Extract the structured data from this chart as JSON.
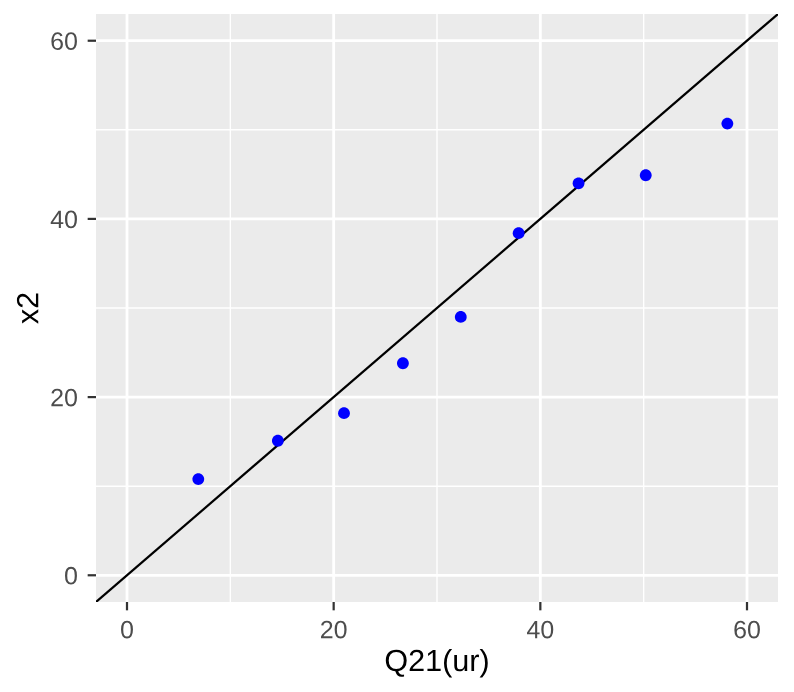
{
  "chart_data": {
    "type": "scatter",
    "xlabel": "Q21(ur)",
    "ylabel": "x2",
    "marker": "circle",
    "grid": true,
    "xlim": [
      -3,
      63
    ],
    "ylim": [
      -3,
      63
    ],
    "xticks": [
      0,
      {
        "value": 10,
        "label": null
      },
      20,
      {
        "value": 30,
        "label": null
      },
      40,
      {
        "value": 50,
        "label": null
      },
      60
    ],
    "yticks": [
      0,
      {
        "value": 10,
        "label": null
      },
      20,
      {
        "value": 30,
        "label": null
      },
      40,
      {
        "value": 50,
        "label": null
      },
      60
    ],
    "series": [
      {
        "color": "#0000ff",
        "x": [
          6.9,
          14.6,
          21.0,
          26.7,
          32.3,
          37.9,
          43.7,
          50.2,
          58.1
        ],
        "values": [
          10.8,
          15.1,
          18.2,
          23.8,
          29.0,
          38.4,
          44.0,
          44.9,
          50.7
        ]
      },
      {
        "type": "line",
        "color": "#000000",
        "marker": "none",
        "x": [
          -3,
          63
        ],
        "values": [
          -3,
          63
        ]
      }
    ]
  }
}
